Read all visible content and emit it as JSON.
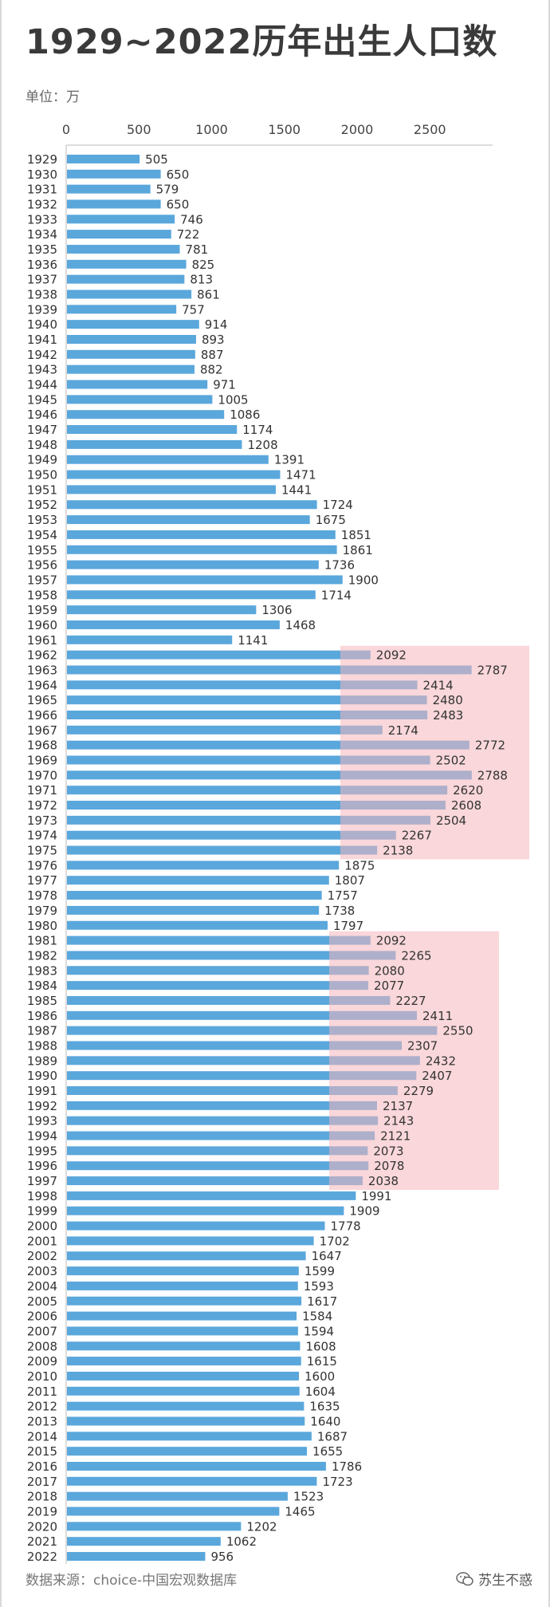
{
  "title": "1929~2022历年出生人口数",
  "unit_label": "单位：万",
  "footer": {
    "source": "数据来源：choice-中国宏观数据库",
    "brand": "苏生不惑",
    "brand_icon": "wechat-icon"
  },
  "colors": {
    "bar": "#5aa7dc",
    "highlight": "#f4b6bb",
    "axis_text": "#444444"
  },
  "chart_data": {
    "type": "bar",
    "orientation": "horizontal",
    "title": "1929~2022历年出生人口数",
    "xlabel": "",
    "ylabel": "",
    "unit": "万",
    "xlim": [
      0,
      2900
    ],
    "xticks": [
      0,
      500,
      1000,
      1500,
      2000,
      2500
    ],
    "categories": [
      "1929",
      "1930",
      "1931",
      "1932",
      "1933",
      "1934",
      "1935",
      "1936",
      "1937",
      "1938",
      "1939",
      "1940",
      "1941",
      "1942",
      "1943",
      "1944",
      "1945",
      "1946",
      "1947",
      "1948",
      "1949",
      "1950",
      "1951",
      "1952",
      "1953",
      "1954",
      "1955",
      "1956",
      "1957",
      "1958",
      "1959",
      "1960",
      "1961",
      "1962",
      "1963",
      "1964",
      "1965",
      "1966",
      "1967",
      "1968",
      "1969",
      "1970",
      "1971",
      "1972",
      "1973",
      "1974",
      "1975",
      "1976",
      "1977",
      "1978",
      "1979",
      "1980",
      "1981",
      "1982",
      "1983",
      "1984",
      "1985",
      "1986",
      "1987",
      "1988",
      "1989",
      "1990",
      "1991",
      "1992",
      "1993",
      "1994",
      "1995",
      "1996",
      "1997",
      "1998",
      "1999",
      "2000",
      "2001",
      "2002",
      "2003",
      "2004",
      "2005",
      "2006",
      "2007",
      "2008",
      "2009",
      "2010",
      "2011",
      "2012",
      "2013",
      "2014",
      "2015",
      "2016",
      "2017",
      "2018",
      "2019",
      "2020",
      "2021",
      "2022"
    ],
    "values": [
      505,
      650,
      579,
      650,
      746,
      722,
      781,
      825,
      813,
      861,
      757,
      914,
      893,
      887,
      882,
      971,
      1005,
      1086,
      1174,
      1208,
      1391,
      1471,
      1441,
      1724,
      1675,
      1851,
      1861,
      1736,
      1900,
      1714,
      1306,
      1468,
      1141,
      2092,
      2787,
      2414,
      2480,
      2483,
      2174,
      2772,
      2502,
      2788,
      2620,
      2608,
      2504,
      2267,
      2138,
      1875,
      1807,
      1757,
      1738,
      1797,
      2092,
      2265,
      2080,
      2077,
      2227,
      2411,
      2550,
      2307,
      2432,
      2407,
      2279,
      2137,
      2143,
      2121,
      2073,
      2078,
      2038,
      1991,
      1909,
      1778,
      1702,
      1647,
      1599,
      1593,
      1617,
      1584,
      1594,
      1608,
      1615,
      1600,
      1604,
      1635,
      1640,
      1687,
      1655,
      1786,
      1723,
      1523,
      1465,
      1202,
      1062,
      956
    ],
    "highlight_ranges": [
      {
        "from": "1962",
        "to": "1975"
      },
      {
        "from": "1981",
        "to": "1997"
      }
    ]
  }
}
